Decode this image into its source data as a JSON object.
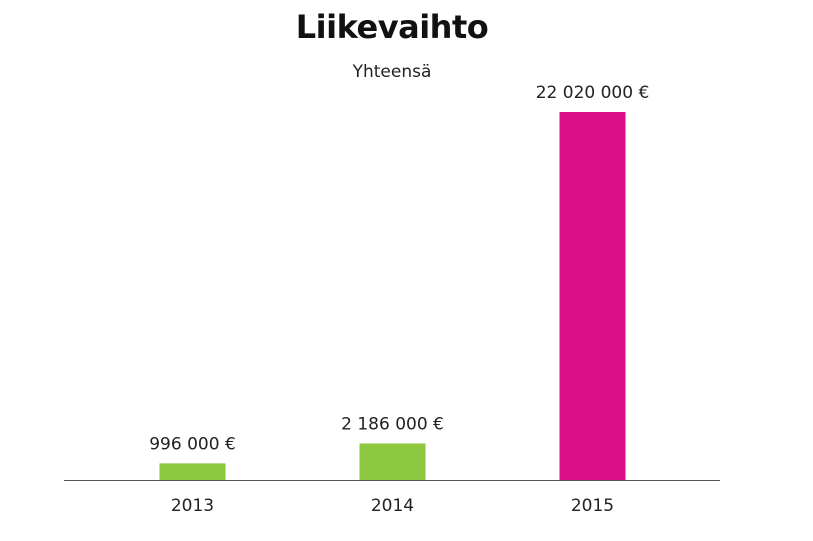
{
  "chart_data": {
    "type": "bar",
    "title": "Liikevaihto",
    "subtitle": "Yhteensä",
    "categories": [
      "2013",
      "2014",
      "2015"
    ],
    "values": [
      996000,
      2186000,
      22020000
    ],
    "value_labels": [
      "996 000 €",
      "2 186 000 €",
      "22 020 000 €"
    ],
    "bar_colors": [
      "#8dc63f",
      "#8dc63f",
      "#db0f8a"
    ],
    "axis_color": "#555555",
    "ylim": [
      0,
      22020000
    ],
    "grid": false,
    "legend": "none"
  }
}
